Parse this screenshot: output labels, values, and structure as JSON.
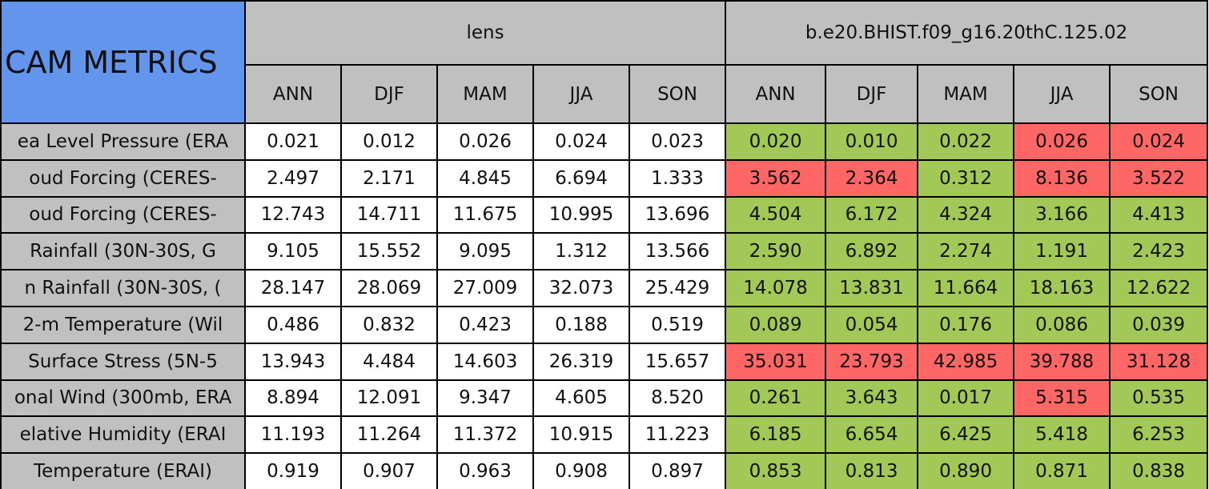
{
  "header": {
    "title": "CAM METRICS",
    "groups": [
      {
        "name": "lens",
        "seasons": [
          "ANN",
          "DJF",
          "MAM",
          "JJA",
          "SON"
        ]
      },
      {
        "name": "b.e20.BHIST.f09_g16.20thC.125.02",
        "seasons": [
          "ANN",
          "DJF",
          "MAM",
          "JJA",
          "SON"
        ]
      }
    ]
  },
  "table": {
    "rows": [
      {
        "label": "ea Level Pressure (ERA",
        "values": [
          "0.021",
          "0.012",
          "0.026",
          "0.024",
          "0.023",
          "0.020",
          "0.010",
          "0.022",
          "0.026",
          "0.024"
        ],
        "colors": [
          "#ffffff",
          "#ffffff",
          "#ffffff",
          "#ffffff",
          "#ffffff",
          "#a2c957",
          "#a2c957",
          "#a2c957",
          "#ff6666",
          "#ff6666"
        ]
      },
      {
        "label": "oud Forcing (CERES-",
        "values": [
          "2.497",
          "2.171",
          "4.845",
          "6.694",
          "1.333",
          "3.562",
          "2.364",
          "0.312",
          "8.136",
          "3.522"
        ],
        "colors": [
          "#ffffff",
          "#ffffff",
          "#ffffff",
          "#ffffff",
          "#ffffff",
          "#ff6666",
          "#ff6666",
          "#a2c957",
          "#ff6666",
          "#ff6666"
        ]
      },
      {
        "label": "oud Forcing (CERES-",
        "values": [
          "12.743",
          "14.711",
          "11.675",
          "10.995",
          "13.696",
          "4.504",
          "6.172",
          "4.324",
          "3.166",
          "4.413"
        ],
        "colors": [
          "#ffffff",
          "#ffffff",
          "#ffffff",
          "#ffffff",
          "#ffffff",
          "#a2c957",
          "#a2c957",
          "#a2c957",
          "#a2c957",
          "#a2c957"
        ]
      },
      {
        "label": "Rainfall (30N-30S, G",
        "values": [
          "9.105",
          "15.552",
          "9.095",
          "1.312",
          "13.566",
          "2.590",
          "6.892",
          "2.274",
          "1.191",
          "2.423"
        ],
        "colors": [
          "#ffffff",
          "#ffffff",
          "#ffffff",
          "#ffffff",
          "#ffffff",
          "#a2c957",
          "#a2c957",
          "#a2c957",
          "#a2c957",
          "#a2c957"
        ]
      },
      {
        "label": "n Rainfall (30N-30S, (",
        "values": [
          "28.147",
          "28.069",
          "27.009",
          "32.073",
          "25.429",
          "14.078",
          "13.831",
          "11.664",
          "18.163",
          "12.622"
        ],
        "colors": [
          "#ffffff",
          "#ffffff",
          "#ffffff",
          "#ffffff",
          "#ffffff",
          "#a2c957",
          "#a2c957",
          "#a2c957",
          "#a2c957",
          "#a2c957"
        ]
      },
      {
        "label": "2-m Temperature (Wil",
        "values": [
          "0.486",
          "0.832",
          "0.423",
          "0.188",
          "0.519",
          "0.089",
          "0.054",
          "0.176",
          "0.086",
          "0.039"
        ],
        "colors": [
          "#ffffff",
          "#ffffff",
          "#ffffff",
          "#ffffff",
          "#ffffff",
          "#a2c957",
          "#a2c957",
          "#a2c957",
          "#a2c957",
          "#a2c957"
        ]
      },
      {
        "label": "Surface Stress (5N-5",
        "values": [
          "13.943",
          "4.484",
          "14.603",
          "26.319",
          "15.657",
          "35.031",
          "23.793",
          "42.985",
          "39.788",
          "31.128"
        ],
        "colors": [
          "#ffffff",
          "#ffffff",
          "#ffffff",
          "#ffffff",
          "#ffffff",
          "#ff6666",
          "#ff6666",
          "#ff6666",
          "#ff6666",
          "#ff6666"
        ]
      },
      {
        "label": "onal Wind (300mb, ERA",
        "values": [
          "8.894",
          "12.091",
          "9.347",
          "4.605",
          "8.520",
          "0.261",
          "3.643",
          "0.017",
          "5.315",
          "0.535"
        ],
        "colors": [
          "#ffffff",
          "#ffffff",
          "#ffffff",
          "#ffffff",
          "#ffffff",
          "#a2c957",
          "#a2c957",
          "#a2c957",
          "#ff6666",
          "#a2c957"
        ]
      },
      {
        "label": "elative Humidity (ERAI",
        "values": [
          "11.193",
          "11.264",
          "11.372",
          "10.915",
          "11.223",
          "6.185",
          "6.654",
          "6.425",
          "5.418",
          "6.253"
        ],
        "colors": [
          "#ffffff",
          "#ffffff",
          "#ffffff",
          "#ffffff",
          "#ffffff",
          "#a2c957",
          "#a2c957",
          "#a2c957",
          "#a2c957",
          "#a2c957"
        ]
      },
      {
        "label": "Temperature (ERAI)",
        "values": [
          "0.919",
          "0.907",
          "0.963",
          "0.908",
          "0.897",
          "0.853",
          "0.813",
          "0.890",
          "0.871",
          "0.838"
        ],
        "colors": [
          "#ffffff",
          "#ffffff",
          "#ffffff",
          "#ffffff",
          "#ffffff",
          "#a2c957",
          "#a2c957",
          "#a2c957",
          "#a2c957",
          "#a2c957"
        ]
      }
    ]
  }
}
